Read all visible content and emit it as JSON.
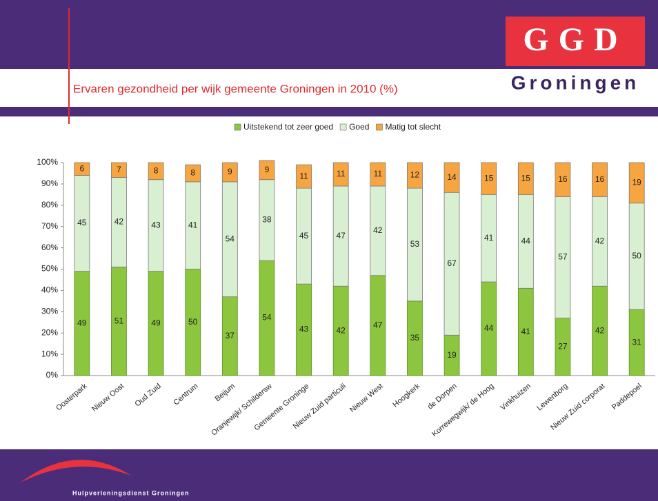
{
  "header": {
    "logo": "GGD",
    "logo_sub": "Groningen"
  },
  "footer": {
    "text": "Hulpverleningsdienst Groningen"
  },
  "chart_data": {
    "type": "stacked_bar",
    "title": "Ervaren gezondheid per wijk gemeente Groningen in 2010 (%)",
    "categories": [
      "Oosterpark",
      "Nieuw Oost",
      "Oud Zuid",
      "Centrum",
      "Beijum",
      "Oranjewijk/ Schildersw",
      "Gemeente Groninge",
      "Nieuw Zuid particuli",
      "Nieuw West",
      "Hoogkerk",
      "de Dorpen",
      "Korrewegwijk/ de Hoog",
      "Vinkhuizen",
      "Lewenborg",
      "Nieuw Zuid corporat",
      "Paddepoel"
    ],
    "series": [
      {
        "name": "Uitstekend tot zeer goed",
        "color": "#8cc63f",
        "values": [
          49,
          51,
          49,
          50,
          37,
          54,
          43,
          42,
          47,
          35,
          19,
          44,
          41,
          27,
          42,
          31
        ]
      },
      {
        "name": "Goed",
        "color": "#d9efd2",
        "values": [
          45,
          42,
          43,
          41,
          54,
          38,
          45,
          47,
          42,
          53,
          67,
          41,
          44,
          57,
          42,
          50
        ]
      },
      {
        "name": "Matig tot slecht",
        "color": "#f7a541",
        "values": [
          6,
          7,
          8,
          8,
          9,
          9,
          11,
          11,
          11,
          12,
          14,
          15,
          15,
          16,
          16,
          19
        ]
      }
    ],
    "ylim": [
      0,
      100
    ],
    "yticks": [
      {
        "value": 0,
        "label": "0%"
      },
      {
        "value": 10,
        "label": "10%"
      },
      {
        "value": 20,
        "label": "20%"
      },
      {
        "value": 30,
        "label": "30%"
      },
      {
        "value": 40,
        "label": "40%"
      },
      {
        "value": 50,
        "label": "50%"
      },
      {
        "value": 60,
        "label": "60%"
      },
      {
        "value": 70,
        "label": "70%"
      },
      {
        "value": 80,
        "label": "80%"
      },
      {
        "value": 90,
        "label": "90%"
      },
      {
        "value": 100,
        "label": "100%"
      }
    ],
    "legend": "top"
  }
}
